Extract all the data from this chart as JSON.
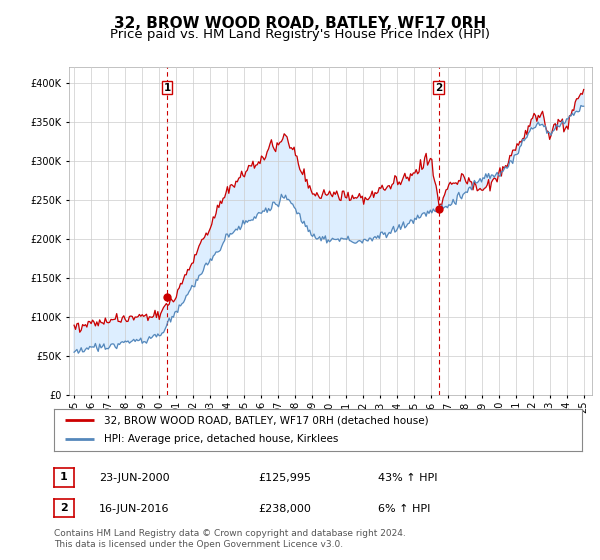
{
  "title": "32, BROW WOOD ROAD, BATLEY, WF17 0RH",
  "subtitle": "Price paid vs. HM Land Registry's House Price Index (HPI)",
  "ylim": [
    0,
    420000
  ],
  "yticks": [
    0,
    50000,
    100000,
    150000,
    200000,
    250000,
    300000,
    350000,
    400000
  ],
  "xlim_start": 1995,
  "xlim_end": 2025.5,
  "marker1_x": 2000.47,
  "marker1_y": 125995,
  "marker1_label": "1",
  "marker2_x": 2016.46,
  "marker2_y": 238000,
  "marker2_label": "2",
  "line1_color": "#cc0000",
  "line1_label": "32, BROW WOOD ROAD, BATLEY, WF17 0RH (detached house)",
  "line2_color": "#5588bb",
  "line2_label": "HPI: Average price, detached house, Kirklees",
  "fill_color": "#ddeeff",
  "vline_color": "#cc0000",
  "table_rows": [
    {
      "num": "1",
      "date": "23-JUN-2000",
      "price": "£125,995",
      "hpi": "43% ↑ HPI"
    },
    {
      "num": "2",
      "date": "16-JUN-2016",
      "price": "£238,000",
      "hpi": "6% ↑ HPI"
    }
  ],
  "footer": "Contains HM Land Registry data © Crown copyright and database right 2024.\nThis data is licensed under the Open Government Licence v3.0.",
  "background_color": "#ffffff",
  "grid_color": "#cccccc",
  "title_fontsize": 11,
  "subtitle_fontsize": 9.5
}
